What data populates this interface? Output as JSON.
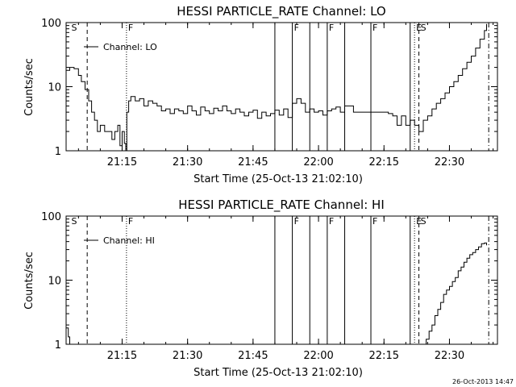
{
  "footer_timestamp": "26-Oct-2013 14:47",
  "chart_data": [
    {
      "type": "line",
      "title": "HESSI PARTICLE_RATE Channel: LO",
      "xlabel": "Start Time (25-Oct-13 21:02:10)",
      "ylabel": "Counts/sec",
      "yscale": "log",
      "ylim": [
        1,
        100
      ],
      "xlim": [
        "21:02:10",
        "22:41:00"
      ],
      "xticks": [
        "21:15",
        "21:30",
        "21:45",
        "22:00",
        "22:15",
        "22:30"
      ],
      "yticks": [
        "1",
        "10",
        "100"
      ],
      "legend": {
        "text": "Channel: LO",
        "position": "top-left"
      },
      "markers": [
        {
          "time": "21:03",
          "label": "S",
          "style": "none"
        },
        {
          "time": "21:07",
          "label": "",
          "style": "dashed"
        },
        {
          "time": "21:16",
          "label": "F",
          "style": "dotted"
        },
        {
          "time": "21:50",
          "label": "",
          "style": "solid"
        },
        {
          "time": "21:54",
          "label": "F",
          "style": "solid"
        },
        {
          "time": "21:58",
          "label": "",
          "style": "solid"
        },
        {
          "time": "22:02",
          "label": "F",
          "style": "solid"
        },
        {
          "time": "22:06",
          "label": "",
          "style": "solid"
        },
        {
          "time": "22:12",
          "label": "F",
          "style": "solid"
        },
        {
          "time": "22:21",
          "label": "",
          "style": "solid"
        },
        {
          "time": "22:22",
          "label": "E",
          "style": "dotted"
        },
        {
          "time": "22:23",
          "label": "S",
          "style": "dashed"
        },
        {
          "time": "22:39",
          "label": "",
          "style": "dashdot"
        }
      ],
      "series": [
        {
          "x": [
            "21:02:10",
            "21:03:00",
            "21:04:00",
            "21:05:00",
            "21:05:40",
            "21:06:30",
            "21:07:20",
            "21:08:00",
            "21:08:40",
            "21:09:20",
            "21:10:00",
            "21:11:00",
            "21:12:00",
            "21:12:40",
            "21:13:20",
            "21:14:00",
            "21:14:30",
            "21:15:00",
            "21:15:30",
            "21:15:50",
            "21:16:05",
            "21:16:30",
            "21:17:00",
            "21:18:00",
            "21:19:00",
            "21:20:00",
            "21:21:00",
            "21:22:00",
            "21:23:00",
            "21:24:00",
            "21:25:00",
            "21:26:00",
            "21:27:00",
            "21:28:00",
            "21:29:00",
            "21:30:00",
            "21:31:00",
            "21:32:00",
            "21:33:00",
            "21:34:00",
            "21:35:00",
            "21:36:00",
            "21:37:00",
            "21:38:00",
            "21:39:00",
            "21:40:00",
            "21:41:00",
            "21:42:00",
            "21:43:00",
            "21:44:00",
            "21:45:00",
            "21:46:00",
            "21:47:00",
            "21:48:00",
            "21:49:00",
            "21:50:00",
            "21:51:00",
            "21:52:00",
            "21:53:00",
            "21:54:00",
            "21:55:00",
            "21:56:00",
            "21:57:00",
            "21:58:00",
            "21:59:00",
            "22:00:00",
            "22:01:00",
            "22:02:00",
            "22:03:00",
            "22:04:00",
            "22:05:00",
            "22:06:00",
            "22:08:00",
            "22:10:00",
            "22:12:00",
            "22:14:00",
            "22:16:00",
            "22:17:00",
            "22:18:00",
            "22:19:00",
            "22:20:00",
            "22:21:00",
            "22:22:00",
            "22:23:00",
            "22:24:00",
            "22:25:00",
            "22:26:00",
            "22:27:00",
            "22:28:00",
            "22:29:00",
            "22:30:00",
            "22:31:00",
            "22:32:00",
            "22:33:00",
            "22:34:00",
            "22:35:00",
            "22:36:00",
            "22:37:00",
            "22:38:00",
            "22:38:30"
          ],
          "y": [
            18,
            20,
            19,
            15,
            12,
            9,
            6,
            4,
            3,
            2,
            2.5,
            2,
            2,
            1.5,
            2,
            2.5,
            1.2,
            2,
            1.3,
            1,
            4,
            6,
            7,
            6,
            6.5,
            5,
            6,
            5.5,
            5,
            4.2,
            4.5,
            3.8,
            4.5,
            4.2,
            3.8,
            5,
            4.2,
            3.6,
            4.8,
            4.2,
            3.8,
            4.6,
            4.2,
            5,
            4.2,
            3.8,
            4.5,
            4,
            3.5,
            4,
            4.3,
            3.2,
            4,
            3.5,
            3.8,
            4.3,
            3.6,
            4.5,
            3.3,
            5.5,
            6.5,
            5.5,
            4,
            4.5,
            4,
            4.2,
            3.6,
            4.2,
            4.5,
            4.8,
            4,
            5,
            4,
            4,
            4,
            4,
            3.8,
            3.5,
            2.5,
            3.5,
            2.5,
            3,
            2.5,
            2,
            3,
            3.5,
            4.5,
            5.5,
            6.5,
            8,
            10,
            12,
            15,
            19,
            24,
            30,
            40,
            55,
            75,
            95
          ]
        }
      ]
    },
    {
      "type": "line",
      "title": "HESSI PARTICLE_RATE Channel: HI",
      "xlabel": "Start Time (25-Oct-13 21:02:10)",
      "ylabel": "Counts/sec",
      "yscale": "log",
      "ylim": [
        1,
        100
      ],
      "xlim": [
        "21:02:10",
        "22:41:00"
      ],
      "xticks": [
        "21:15",
        "21:30",
        "21:45",
        "22:00",
        "22:15",
        "22:30"
      ],
      "yticks": [
        "1",
        "10",
        "100"
      ],
      "legend": {
        "text": "Channel: HI",
        "position": "top-left"
      },
      "markers": [
        {
          "time": "21:03",
          "label": "S",
          "style": "none"
        },
        {
          "time": "21:07",
          "label": "",
          "style": "dashed"
        },
        {
          "time": "21:16",
          "label": "F",
          "style": "dotted"
        },
        {
          "time": "21:50",
          "label": "",
          "style": "solid"
        },
        {
          "time": "21:54",
          "label": "F",
          "style": "solid"
        },
        {
          "time": "21:58",
          "label": "",
          "style": "solid"
        },
        {
          "time": "22:02",
          "label": "F",
          "style": "solid"
        },
        {
          "time": "22:06",
          "label": "",
          "style": "solid"
        },
        {
          "time": "22:12",
          "label": "F",
          "style": "solid"
        },
        {
          "time": "22:21",
          "label": "",
          "style": "solid"
        },
        {
          "time": "22:22",
          "label": "E",
          "style": "dotted"
        },
        {
          "time": "22:23",
          "label": "S",
          "style": "dashed"
        },
        {
          "time": "22:39",
          "label": "",
          "style": "dashdot"
        }
      ],
      "series": [
        {
          "x": [
            "21:02:10",
            "21:02:40",
            "21:03:00"
          ],
          "y": [
            1.8,
            1.3,
            1
          ]
        },
        {
          "x": [
            "22:24:00",
            "22:24:40",
            "22:25:20",
            "22:26:00",
            "22:26:40",
            "22:27:20",
            "22:28:00",
            "22:28:40",
            "22:29:20",
            "22:30:00",
            "22:30:40",
            "22:31:20",
            "22:32:00",
            "22:32:40",
            "22:33:20",
            "22:34:00",
            "22:34:40",
            "22:35:20",
            "22:36:00",
            "22:36:40",
            "22:37:20",
            "22:38:00",
            "22:38:30"
          ],
          "y": [
            1,
            1.2,
            1.6,
            2,
            2.8,
            3.5,
            4.5,
            6,
            7,
            8,
            9.5,
            11,
            14,
            16,
            19,
            22,
            25,
            27,
            30,
            33,
            37,
            38,
            35
          ]
        }
      ]
    }
  ]
}
